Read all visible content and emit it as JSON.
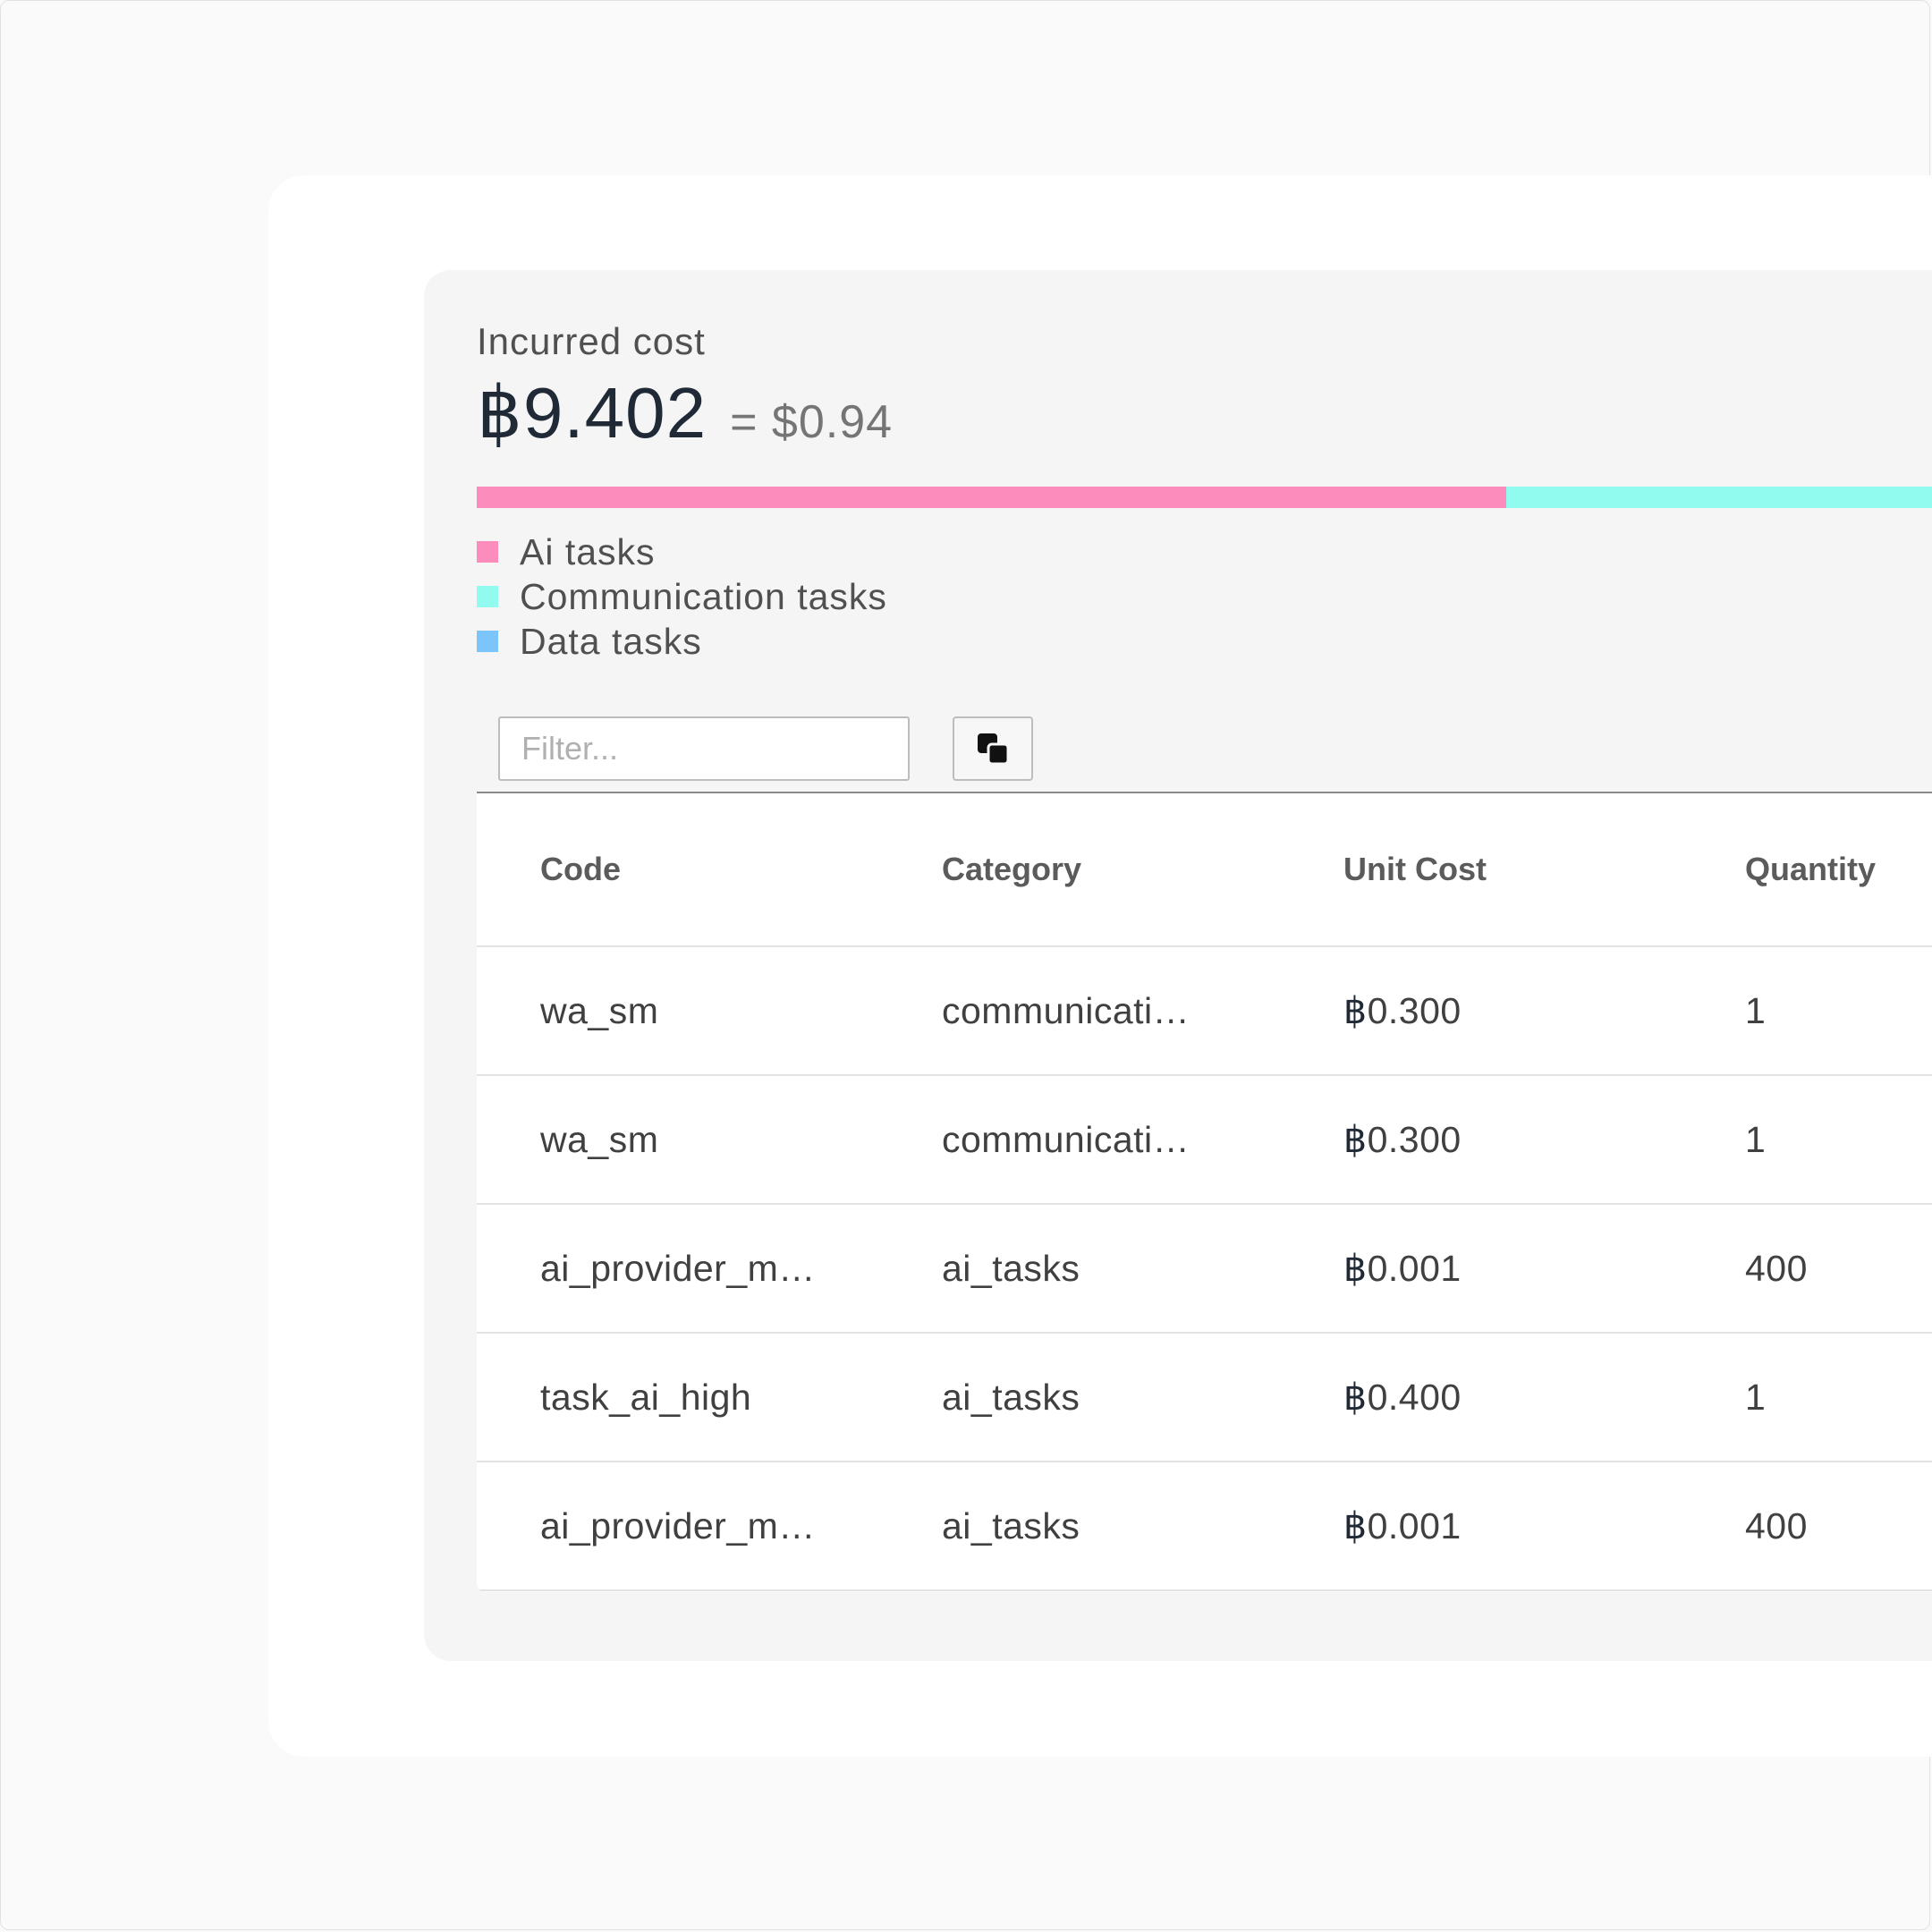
{
  "cost": {
    "label": "Incurred cost",
    "amount": "⁹9.402",
    "amount_symbol": "฿",
    "amount_value": "9.402",
    "equivalent": "= $0.94"
  },
  "breakdown_bar": {
    "segments": [
      {
        "name": "Ai tasks",
        "color": "#fb8cbc",
        "fraction": 0.7073
      },
      {
        "name": "Communication tasks",
        "color": "#92fbef",
        "fraction": 0.2927
      },
      {
        "name": "Data tasks",
        "color": "#7cc5fb",
        "fraction": 0.0
      }
    ]
  },
  "legend": [
    {
      "label": "Ai tasks",
      "color": "#fb8cbc"
    },
    {
      "label": "Communication tasks",
      "color": "#92fbef"
    },
    {
      "label": "Data tasks",
      "color": "#7cc5fb"
    }
  ],
  "filter": {
    "placeholder": "Filter...",
    "value": ""
  },
  "copy_button": {
    "icon": "copy-icon"
  },
  "table": {
    "columns": [
      "Code",
      "Category",
      "Unit Cost",
      "Quantity"
    ],
    "rows": [
      {
        "code": "wa_sm",
        "category": "communicati…",
        "unit_cost": "0.300",
        "quantity": "1"
      },
      {
        "code": "wa_sm",
        "category": "communicati…",
        "unit_cost": "0.300",
        "quantity": "1"
      },
      {
        "code": "ai_provider_m…",
        "category": "ai_tasks",
        "unit_cost": "0.001",
        "quantity": "400"
      },
      {
        "code": "task_ai_high",
        "category": "ai_tasks",
        "unit_cost": "0.400",
        "quantity": "1"
      },
      {
        "code": "ai_provider_m…",
        "category": "ai_tasks",
        "unit_cost": "0.001",
        "quantity": "400"
      }
    ],
    "currency_symbol": "฿"
  }
}
